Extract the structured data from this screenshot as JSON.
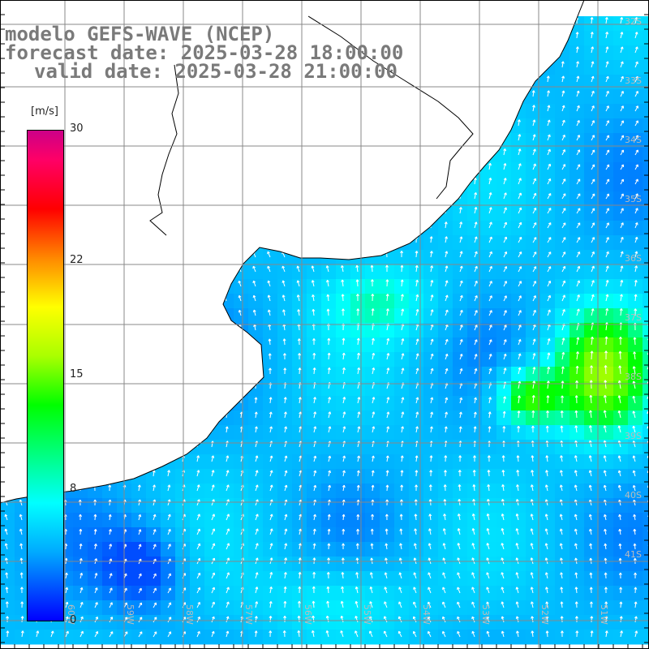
{
  "title": {
    "model": "modelo GEFS-WAVE (NCEP)",
    "forecast": "forecast date: 2025-03-28 18:00:00",
    "valid": "valid date: 2025-03-28 21:00:00"
  },
  "colorbar": {
    "unit": "[m/s]",
    "min": 0,
    "max": 30,
    "ticks": [
      "30",
      "22",
      "15",
      "8",
      "0"
    ],
    "colors": [
      "#0000ff",
      "#00aaff",
      "#00ffff",
      "#00ff00",
      "#aaff00",
      "#ffff00",
      "#ff8800",
      "#ff0000",
      "#ff0066",
      "#cc0088"
    ]
  },
  "map": {
    "lat_labels": [
      "32S",
      "33S",
      "34S",
      "35S",
      "36S",
      "37S",
      "38S",
      "39S",
      "40S",
      "41S"
    ],
    "lon_labels": [
      "60W",
      "59W",
      "58W",
      "57W",
      "56W",
      "55W",
      "54W",
      "53W",
      "52W",
      "51W"
    ],
    "land_color": "#ffffff",
    "grid_color": "#888888",
    "arrow_color": "#ffffff"
  }
}
